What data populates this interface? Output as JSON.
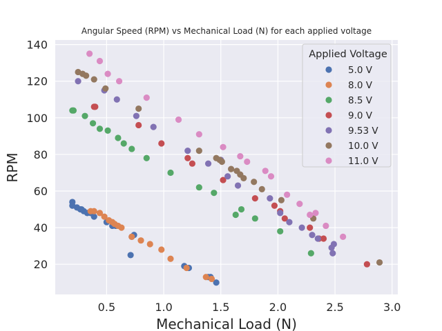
{
  "chart_data": {
    "type": "scatter",
    "title": "Angular Speed (RPM) vs Mechanical Load (N) for each applied voltage",
    "xlabel": "Mechanical Load (N)",
    "ylabel": "RPM",
    "xlim": [
      0.05,
      3.05
    ],
    "ylim": [
      3.5,
      142.5
    ],
    "xticks": [
      "0.5",
      "1.0",
      "1.5",
      "2.0",
      "2.5",
      "3.0"
    ],
    "yticks": [
      "20",
      "40",
      "60",
      "80",
      "100",
      "120",
      "140"
    ],
    "grid": true,
    "legend": {
      "title": "Applied Voltage",
      "position": "top-right"
    },
    "series": [
      {
        "name": "5.0 V",
        "color": "#4c72b0",
        "x": [
          0.2,
          0.2,
          0.24,
          0.27,
          0.28,
          0.3,
          0.33,
          0.36,
          0.39,
          0.5,
          0.55,
          0.58,
          0.72,
          0.74,
          0.71,
          1.18,
          1.22,
          1.39,
          1.41,
          1.46
        ],
        "y": [
          54,
          52,
          51,
          50,
          50,
          49,
          48,
          48,
          46,
          43,
          41,
          41,
          35,
          36,
          25,
          19,
          18,
          13,
          13,
          10
        ]
      },
      {
        "name": "8.0 V",
        "color": "#dd8452",
        "x": [
          0.36,
          0.39,
          0.44,
          0.48,
          0.52,
          0.55,
          0.57,
          0.6,
          0.63,
          0.72,
          0.8,
          0.88,
          0.98,
          1.06,
          1.2,
          1.37,
          1.42
        ],
        "y": [
          49,
          49,
          48,
          46,
          44,
          43,
          42,
          41,
          40,
          35,
          33,
          31,
          28,
          23,
          18,
          13,
          12
        ]
      },
      {
        "name": "8.5 V",
        "color": "#55a868",
        "x": [
          0.2,
          0.21,
          0.31,
          0.38,
          0.44,
          0.51,
          0.6,
          0.65,
          0.72,
          0.85,
          1.06,
          1.31,
          1.44,
          1.63,
          1.68,
          1.8,
          2.02,
          2.29
        ],
        "y": [
          104,
          104,
          101,
          97,
          94,
          93,
          89,
          86,
          83,
          78,
          70,
          62,
          59,
          47,
          50,
          45,
          38,
          26
        ]
      },
      {
        "name": "9.0 V",
        "color": "#c44e52",
        "x": [
          0.39,
          0.4,
          0.78,
          0.98,
          1.21,
          1.25,
          1.52,
          1.8,
          1.97,
          2.02,
          2.06,
          2.28,
          2.36,
          2.4,
          2.78
        ],
        "y": [
          106,
          106,
          96,
          86,
          78,
          75,
          66,
          56,
          52,
          49,
          45,
          40,
          34,
          34,
          20
        ]
      },
      {
        "name": "9.53 V",
        "color": "#8172b3",
        "x": [
          0.25,
          0.48,
          0.59,
          0.76,
          0.91,
          1.21,
          1.39,
          1.5,
          1.56,
          1.65,
          1.93,
          2.02,
          2.1,
          2.21,
          2.3,
          2.35,
          2.47,
          2.49,
          2.48
        ],
        "y": [
          120,
          115,
          110,
          101,
          95,
          82,
          75,
          77,
          68,
          63,
          56,
          48,
          43,
          40,
          36,
          34,
          29,
          31,
          26
        ]
      },
      {
        "name": "10.0 V",
        "color": "#937860",
        "x": [
          0.25,
          0.29,
          0.32,
          0.39,
          0.49,
          0.78,
          1.31,
          1.46,
          1.49,
          1.51,
          1.59,
          1.64,
          1.67,
          1.7,
          1.79,
          1.86,
          2.03,
          2.31,
          2.89
        ],
        "y": [
          125,
          124,
          123,
          121,
          116,
          105,
          82,
          78,
          77,
          76,
          72,
          71,
          69,
          67,
          65,
          61,
          55,
          45,
          21
        ]
      },
      {
        "name": "11.0 V",
        "color": "#da8bc3",
        "x": [
          0.35,
          0.44,
          0.51,
          0.61,
          0.85,
          1.13,
          1.31,
          1.52,
          1.67,
          1.73,
          1.89,
          1.94,
          2.08,
          2.19,
          2.28,
          2.33,
          2.42,
          2.57
        ],
        "y": [
          135,
          131,
          124,
          120,
          111,
          99,
          91,
          84,
          79,
          76,
          71,
          68,
          58,
          53,
          47,
          48,
          41,
          35
        ]
      }
    ]
  }
}
